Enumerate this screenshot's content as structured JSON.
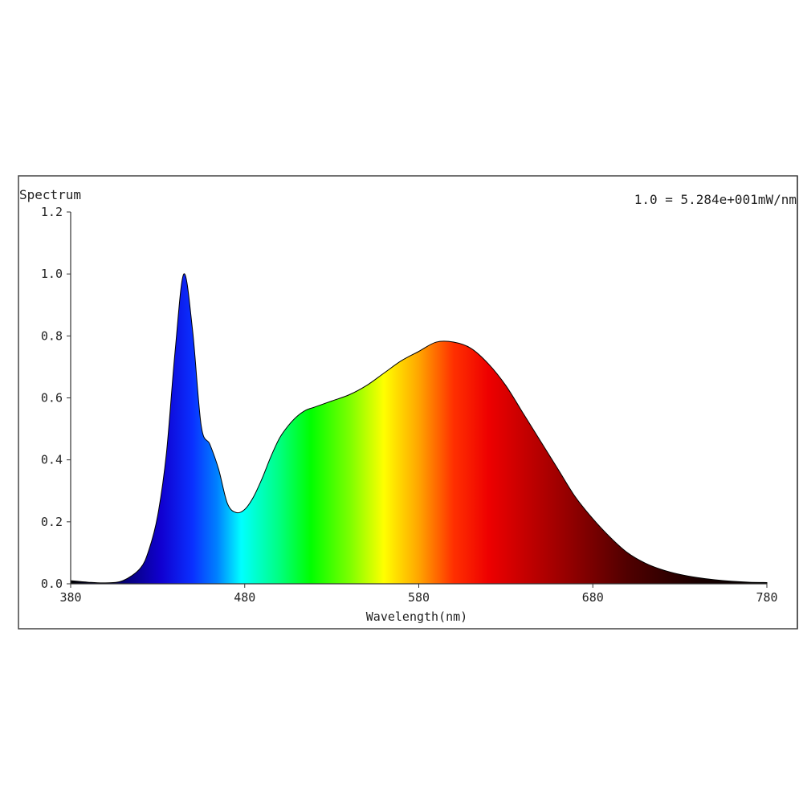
{
  "chart_data": {
    "type": "area",
    "title": "Spectrum",
    "annotation": "1.0 = 5.284e+001mW/nm",
    "xlabel": "Wavelength(nm)",
    "ylabel": "",
    "xlim": [
      380,
      780
    ],
    "ylim": [
      0.0,
      1.2
    ],
    "x_ticks": [
      "380",
      "480",
      "580",
      "680",
      "780"
    ],
    "y_ticks": [
      "0.0",
      "0.2",
      "0.4",
      "0.6",
      "0.8",
      "1.0",
      "1.2"
    ],
    "x": [
      380,
      390,
      400,
      410,
      420,
      425,
      430,
      435,
      440,
      445,
      450,
      455,
      460,
      465,
      470,
      475,
      480,
      485,
      490,
      495,
      500,
      505,
      510,
      515,
      520,
      530,
      540,
      550,
      560,
      570,
      580,
      590,
      600,
      610,
      620,
      630,
      640,
      650,
      660,
      670,
      680,
      690,
      700,
      710,
      720,
      730,
      740,
      750,
      760,
      770,
      780
    ],
    "values": [
      0.01,
      0.005,
      0.003,
      0.01,
      0.05,
      0.11,
      0.22,
      0.42,
      0.75,
      1.0,
      0.82,
      0.51,
      0.45,
      0.37,
      0.26,
      0.23,
      0.24,
      0.28,
      0.34,
      0.41,
      0.47,
      0.51,
      0.54,
      0.56,
      0.57,
      0.59,
      0.61,
      0.64,
      0.68,
      0.72,
      0.75,
      0.78,
      0.78,
      0.76,
      0.71,
      0.64,
      0.55,
      0.46,
      0.37,
      0.28,
      0.21,
      0.15,
      0.1,
      0.067,
      0.045,
      0.03,
      0.02,
      0.013,
      0.008,
      0.005,
      0.004
    ],
    "grid": false,
    "fill": "visible-spectrum gradient"
  }
}
